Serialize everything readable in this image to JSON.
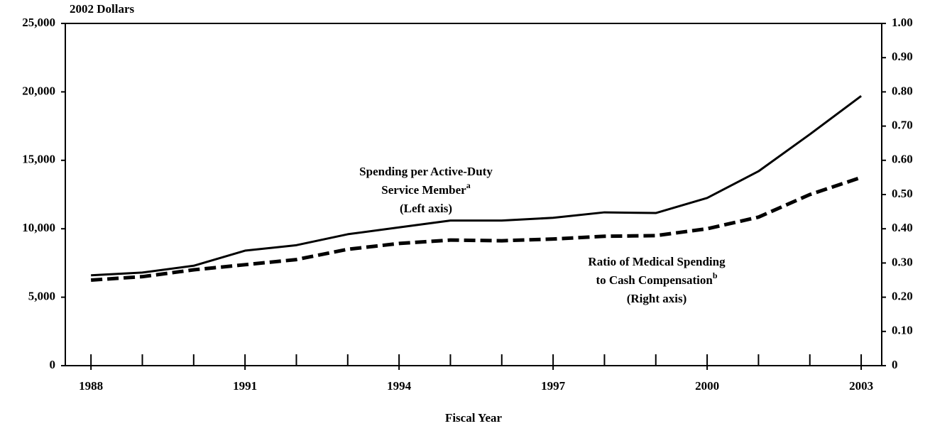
{
  "chart_data": {
    "type": "line",
    "y_unit_label": "2002 Dollars",
    "xlabel": "Fiscal Year",
    "x": [
      1988,
      1989,
      1990,
      1991,
      1992,
      1993,
      1994,
      1995,
      1996,
      1997,
      1998,
      1999,
      2000,
      2001,
      2002,
      2003
    ],
    "series": [
      {
        "color": "#000000",
        "dash": false,
        "axis": "y",
        "values": [
          6600,
          6800,
          7300,
          8400,
          8800,
          9600,
          10100,
          10600,
          10600,
          10800,
          11200,
          11150,
          12250,
          14200,
          16900,
          19700
        ]
      },
      {
        "color": "#000000",
        "dash": true,
        "axis": "y2",
        "values": [
          0.25,
          0.26,
          0.28,
          0.295,
          0.31,
          0.34,
          0.357,
          0.367,
          0.365,
          0.37,
          0.378,
          0.38,
          0.4,
          0.434,
          0.5,
          0.55
        ]
      }
    ],
    "annotations": [
      {
        "lines": [
          "Spending per Active-Duty",
          "Service Member",
          "(Left axis)"
        ],
        "footnote": "a",
        "series": 0
      },
      {
        "lines": [
          "Ratio of Medical Spending",
          "to Cash Compensation",
          "(Right axis)"
        ],
        "footnote": "b",
        "series": 1
      }
    ],
    "xlim": [
      1987.5,
      2003.4
    ],
    "xticks": [
      1988,
      1991,
      1994,
      1997,
      2000,
      2003
    ],
    "xminor_ticks": [
      1988,
      1989,
      1990,
      1991,
      1992,
      1993,
      1994,
      1995,
      1996,
      1997,
      1998,
      1999,
      2000,
      2001,
      2002,
      2003
    ],
    "ylim": [
      0,
      25000
    ],
    "yticks": [
      0,
      {
        "value": 5000,
        "label": "5,000"
      },
      {
        "value": 10000,
        "label": "10,000"
      },
      {
        "value": 15000,
        "label": "15,000"
      },
      {
        "value": 20000,
        "label": "20,000"
      },
      {
        "value": 25000,
        "label": "25,000"
      }
    ],
    "y2lim": [
      0,
      1
    ],
    "y2ticks": [
      0,
      {
        "value": 0.1,
        "label": "0.10"
      },
      {
        "value": 0.2,
        "label": "0.20"
      },
      {
        "value": 0.3,
        "label": "0.30"
      },
      {
        "value": 0.4,
        "label": "0.40"
      },
      {
        "value": 0.5,
        "label": "0.50"
      },
      {
        "value": 0.6,
        "label": "0.60"
      },
      {
        "value": 0.7,
        "label": "0.70"
      },
      {
        "value": 0.8,
        "label": "0.80"
      },
      {
        "value": 0.9,
        "label": "0.90"
      },
      {
        "value": 1,
        "label": "1.00"
      }
    ]
  }
}
